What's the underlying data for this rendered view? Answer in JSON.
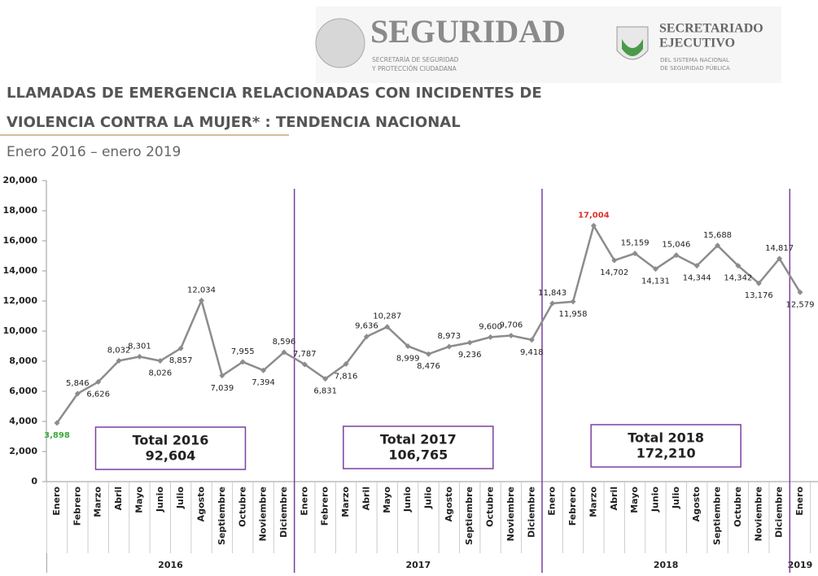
{
  "header": {
    "logo_title": "SEGURIDAD",
    "logo_subtitle_1": "SECRETARÍA DE SEGURIDAD",
    "logo_subtitle_2": "Y PROTECCIÓN CIUDADANA",
    "logo2_title_1": "SECRETARIADO",
    "logo2_title_2": "EJECUTIVO",
    "logo2_subtitle_1": "DEL SISTEMA NACIONAL",
    "logo2_subtitle_2": "DE SEGURIDAD PÚBLICA"
  },
  "chart_data": {
    "type": "line",
    "title_lines": [
      "LLAMADAS DE EMERGENCIA RELACIONADAS CON INCIDENTES DE",
      "VIOLENCIA CONTRA LA MUJER* : TENDENCIA NACIONAL"
    ],
    "subtitle": "Enero 2016 – enero 2019",
    "categories": [
      "Enero",
      "Febrero",
      "Marzo",
      "Abril",
      "Mayo",
      "Junio",
      "Julio",
      "Agosto",
      "Septiembre",
      "Octubre",
      "Noviembre",
      "Diciembre",
      "Enero",
      "Febrero",
      "Marzo",
      "Abril",
      "Mayo",
      "Junio",
      "Julio",
      "Agosto",
      "Septiembre",
      "Octubre",
      "Noviembre",
      "Diciembre",
      "Enero",
      "Febrero",
      "Marzo",
      "Abril",
      "Mayo",
      "Junio",
      "Julio",
      "Agosto",
      "Septiembre",
      "Octubre",
      "Noviembre",
      "Diciembre",
      "Enero"
    ],
    "years": [
      "2016",
      "2017",
      "2018",
      "2019"
    ],
    "series": [
      {
        "name": "Llamadas",
        "color": "#8c8c8c",
        "values": [
          3898,
          5846,
          6626,
          8032,
          8301,
          8026,
          8857,
          12034,
          7039,
          7955,
          7394,
          8596,
          7787,
          6831,
          7816,
          9636,
          10287,
          8999,
          8476,
          8973,
          9236,
          9600,
          9706,
          9418,
          11843,
          11958,
          17004,
          14702,
          15159,
          14131,
          15046,
          14344,
          15688,
          14342,
          13176,
          14817,
          12579
        ],
        "value_labels": [
          "3,898",
          "5,846",
          "6,626",
          "8,032",
          "8,301",
          "8,026",
          "8,857",
          "12,034",
          "7,039",
          "7,955",
          "7,394",
          "8,596",
          "7,787",
          "6,831",
          "7,816",
          "9,636",
          "10,287",
          "8,999",
          "8,476",
          "8,973",
          "9,236",
          "9,600",
          "9,706",
          "9,418",
          "11,843",
          "11,958",
          "17,004",
          "14,702",
          "15,159",
          "14,131",
          "15,046",
          "14,344",
          "15,688",
          "14,342",
          "13,176",
          "14,817",
          "12,579"
        ]
      }
    ],
    "highlights": [
      {
        "index": 0,
        "color": "#3aa83a"
      },
      {
        "index": 26,
        "color": "#e0302a"
      }
    ],
    "totals": [
      {
        "label": "Total 2016",
        "value": 92604,
        "value_label": "92,604"
      },
      {
        "label": "Total 2017",
        "value": 106765,
        "value_label": "106,765"
      },
      {
        "label": "Total 2018",
        "value": 172210,
        "value_label": "172,210"
      }
    ],
    "ylim": [
      0,
      20000
    ],
    "yticks": [
      0,
      {
        "value": 2000,
        "label": "2,000"
      },
      {
        "value": 4000,
        "label": "4,000"
      },
      {
        "value": 6000,
        "label": "6,000"
      },
      {
        "value": 8000,
        "label": "8,000"
      },
      {
        "value": 10000,
        "label": "10,000"
      },
      {
        "value": 12000,
        "label": "12,000"
      },
      {
        "value": 14000,
        "label": "14,000"
      },
      {
        "value": 16000,
        "label": "16,000"
      },
      {
        "value": 18000,
        "label": "18,000"
      },
      {
        "value": 20000,
        "label": "20,000"
      }
    ],
    "separator_color": "#7b3fa0"
  }
}
